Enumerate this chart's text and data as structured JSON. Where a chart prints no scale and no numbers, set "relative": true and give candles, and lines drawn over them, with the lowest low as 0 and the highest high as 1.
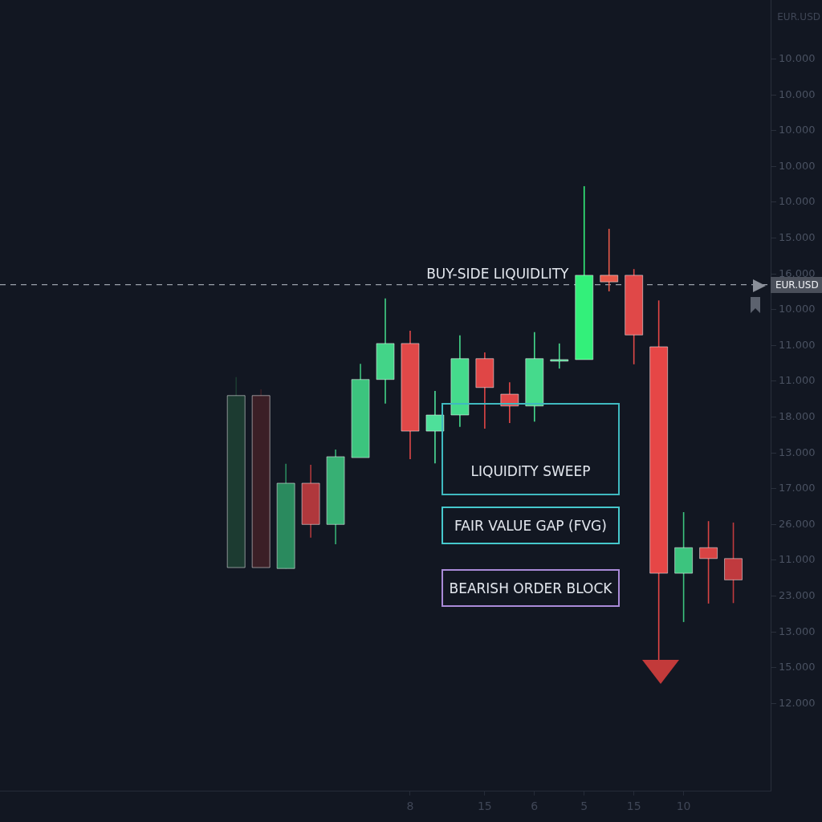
{
  "chart_data": {
    "type": "candlestick",
    "relative": true,
    "categories": [
      null,
      null,
      null,
      null,
      null,
      null,
      null,
      null,
      null,
      null,
      null,
      null,
      null,
      null,
      null,
      null,
      "8",
      null,
      null,
      "15",
      null,
      "6",
      null,
      "5",
      null,
      "15",
      null,
      "10",
      null,
      null,
      null
    ],
    "ohlc": [
      null,
      null,
      null,
      null,
      null,
      null,
      null,
      null,
      null,
      [
        0.195,
        0.597,
        0.195,
        0.558
      ],
      [
        0.558,
        0.571,
        0.195,
        0.195
      ],
      [
        0.193,
        0.414,
        0.193,
        0.373
      ],
      [
        0.373,
        0.412,
        0.258,
        0.286
      ],
      [
        0.286,
        0.444,
        0.244,
        0.429
      ],
      [
        0.427,
        0.625,
        0.427,
        0.592
      ],
      [
        0.592,
        0.763,
        0.541,
        0.668
      ],
      [
        0.668,
        0.695,
        0.424,
        0.483
      ],
      [
        0.483,
        0.568,
        0.415,
        0.517
      ],
      [
        0.517,
        0.685,
        0.492,
        0.636
      ],
      [
        0.636,
        0.649,
        0.488,
        0.575
      ],
      [
        0.561,
        0.586,
        0.5,
        0.536
      ],
      [
        0.536,
        0.692,
        0.503,
        0.636
      ],
      [
        0.632,
        0.668,
        0.615,
        0.634
      ],
      [
        0.634,
        1,
        0.634,
        0.812
      ],
      [
        0.812,
        0.91,
        0.778,
        0.798
      ],
      [
        0.812,
        0.825,
        0.624,
        0.686
      ],
      [
        0.661,
        0.759,
        0,
        0.183
      ],
      [
        0.183,
        0.312,
        0.08,
        0.237
      ],
      [
        0.237,
        0.293,
        0.119,
        0.214
      ],
      [
        0.214,
        0.29,
        0.12,
        0.169
      ],
      null
    ],
    "colors": [
      null,
      null,
      null,
      null,
      null,
      null,
      null,
      null,
      null,
      "#1c3b31",
      "#3b1f26",
      "#2a8a5e",
      "#b0383c",
      "#37b074",
      "#3cc47e",
      "#43d488",
      "#e04848",
      "#4ee09a",
      "#45da8c",
      "#e04646",
      "#e04848",
      "#45da8c",
      "#49dc90",
      "#33f07a",
      "#e85a4a",
      "#e04848",
      "#e64646",
      "#3cc47e",
      "#d84444",
      "#c03a3e",
      null
    ],
    "ref_lines": [
      {
        "axis": "y",
        "value": 0.792,
        "label": "BUY-SIDE LIQUIDLITY",
        "color": "#9aa0aa",
        "line_style": "dashed"
      }
    ],
    "annotations": [
      "EUR.USD",
      "10.000",
      "10.000",
      "10.000",
      "10.000",
      "10.000",
      "15.000",
      "16.000",
      "10.000",
      "11.000",
      "11.000",
      "18.000",
      "13.000",
      "17.000",
      "26.000",
      "11.000",
      "23.000",
      "13.000",
      "15.000",
      "12.000",
      "EUR.USD",
      "LIQUIDITY SWEEP",
      "FAIR VALUE GAP (FVG)",
      "BEARISH ORDER BLOCK"
    ],
    "grid": false,
    "legend": false
  }
}
